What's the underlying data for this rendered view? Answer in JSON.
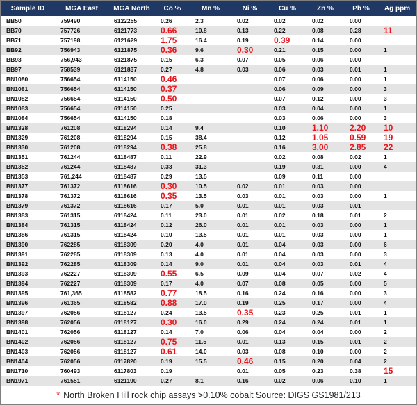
{
  "table": {
    "header": [
      "Sample ID",
      "MGA East",
      "MGA North",
      "Co %",
      "Mn %",
      "Ni %",
      "Cu %",
      "Zn %",
      "Pb %",
      "Ag ppm"
    ],
    "highlight_color": "#e8141b",
    "rows": [
      [
        "BB50",
        "759490",
        "6122255",
        "0.26",
        "2.3",
        "0.02",
        "0.02",
        "0.02",
        "0.00",
        null
      ],
      [
        "BB70",
        "757726",
        "6121773",
        {
          "text": "0.66",
          "highlight": true
        },
        "10.8",
        "0.13",
        "0.22",
        "0.08",
        "0.28",
        {
          "text": "11",
          "highlight": true
        }
      ],
      [
        "BB71",
        "757198",
        "6121629",
        {
          "text": "1.75",
          "highlight": true
        },
        "16.4",
        "0.19",
        {
          "text": "0.39",
          "highlight": true
        },
        "0.14",
        "0.00",
        null
      ],
      [
        "BB92",
        "756943",
        "6121875",
        {
          "text": "0.36",
          "highlight": true
        },
        "9.6",
        {
          "text": "0.30",
          "highlight": true
        },
        "0.21",
        "0.15",
        "0.00",
        "1"
      ],
      [
        "BB93",
        "756,943",
        "6121875",
        "0.15",
        "6.3",
        "0.07",
        "0.05",
        "0.06",
        "0.00",
        null
      ],
      [
        "BB97",
        "758539",
        "6121837",
        "0.27",
        "4.8",
        "0.03",
        "0.06",
        "0.03",
        "0.01",
        "1"
      ],
      [
        "BN1080",
        "756654",
        "6114150",
        {
          "text": "0.46",
          "highlight": true
        },
        null,
        null,
        "0.07",
        "0.06",
        "0.00",
        "1"
      ],
      [
        "BN1081",
        "756654",
        "6114150",
        {
          "text": "0.37",
          "highlight": true
        },
        null,
        null,
        "0.06",
        "0.09",
        "0.00",
        "3"
      ],
      [
        "BN1082",
        "756654",
        "6114150",
        {
          "text": "0.50",
          "highlight": true
        },
        null,
        null,
        "0.07",
        "0.12",
        "0.00",
        "3"
      ],
      [
        "BN1083",
        "756654",
        "6114150",
        "0.25",
        null,
        null,
        "0.03",
        "0.04",
        "0.00",
        "1"
      ],
      [
        "BN1084",
        "756654",
        "6114150",
        "0.18",
        null,
        null,
        "0.03",
        "0.06",
        "0.00",
        "3"
      ],
      [
        "BN1328",
        "761208",
        "6118294",
        "0.14",
        "9.4",
        null,
        "0.10",
        {
          "text": "1.10",
          "highlight": true
        },
        {
          "text": "2.20",
          "highlight": true
        },
        {
          "text": "10",
          "highlight": true
        }
      ],
      [
        "BN1329",
        "761208",
        "6118294",
        "0.15",
        "38.4",
        null,
        "0.12",
        {
          "text": "1.05",
          "highlight": true
        },
        {
          "text": "0.59",
          "highlight": true
        },
        {
          "text": "19",
          "highlight": true
        }
      ],
      [
        "BN1330",
        "761208",
        "6118294",
        {
          "text": "0.38",
          "highlight": true
        },
        "25.8",
        null,
        "0.16",
        {
          "text": "3.00",
          "highlight": true
        },
        {
          "text": "2.85",
          "highlight": true
        },
        {
          "text": "22",
          "highlight": true
        }
      ],
      [
        "BN1351",
        "761244",
        "6118487",
        "0.11",
        "22.9",
        null,
        "0.02",
        "0.08",
        "0.02",
        "1"
      ],
      [
        "BN1352",
        "761244",
        "6118487",
        "0.33",
        "31.3",
        null,
        "0.19",
        "0.31",
        "0.00",
        "4"
      ],
      [
        "BN1353",
        "761,244",
        "6118487",
        "0.29",
        "13.5",
        null,
        "0.09",
        "0.11",
        "0.00",
        null
      ],
      [
        "BN1377",
        "761372",
        "6118616",
        {
          "text": "0.30",
          "highlight": true
        },
        "10.5",
        "0.02",
        "0.01",
        "0.03",
        "0.00",
        null
      ],
      [
        "BN1378",
        "761372",
        "6118616",
        {
          "text": "0.35",
          "highlight": true
        },
        "13.5",
        "0.03",
        "0.01",
        "0.03",
        "0.00",
        "1"
      ],
      [
        "BN1379",
        "761372",
        "6118616",
        "0.17",
        "5.0",
        "0.01",
        "0.01",
        "0.03",
        "0.01",
        null
      ],
      [
        "BN1383",
        "761315",
        "6118424",
        "0.11",
        "23.0",
        "0.01",
        "0.02",
        "0.18",
        "0.01",
        "2"
      ],
      [
        "BN1384",
        "761315",
        "6118424",
        "0.12",
        "26.0",
        "0.01",
        "0.01",
        "0.03",
        "0.00",
        "1"
      ],
      [
        "BN1386",
        "761315",
        "6118424",
        "0.10",
        "13.5",
        "0.01",
        "0.01",
        "0.03",
        "0.00",
        "1"
      ],
      [
        "BN1390",
        "762285",
        "6118309",
        "0.20",
        "4.0",
        "0.01",
        "0.04",
        "0.03",
        "0.00",
        "6"
      ],
      [
        "BN1391",
        "762285",
        "6118309",
        "0.13",
        "4.0",
        "0.01",
        "0.04",
        "0.03",
        "0.00",
        "3"
      ],
      [
        "BN1392",
        "762285",
        "6118309",
        "0.14",
        "9.0",
        "0.01",
        "0.04",
        "0.03",
        "0.01",
        "4"
      ],
      [
        "BN1393",
        "762227",
        "6118309",
        {
          "text": "0.55",
          "highlight": true
        },
        "6.5",
        "0.09",
        "0.04",
        "0.07",
        "0.02",
        "4"
      ],
      [
        "BN1394",
        "762227",
        "6118309",
        "0.17",
        "4.0",
        "0.07",
        "0.08",
        "0.05",
        "0.00",
        "5"
      ],
      [
        "BN1395",
        "761,365",
        "6118582",
        {
          "text": "0.77",
          "highlight": true
        },
        "18.5",
        "0.16",
        "0.24",
        "0.16",
        "0.00",
        "3"
      ],
      [
        "BN1396",
        "761365",
        "6118582",
        {
          "text": "0.88",
          "highlight": true
        },
        "17.0",
        "0.19",
        "0.25",
        "0.17",
        "0.00",
        "4"
      ],
      [
        "BN1397",
        "762056",
        "6118127",
        "0.24",
        "13.5",
        {
          "text": "0.35",
          "highlight": true
        },
        "0.23",
        "0.25",
        "0.01",
        "1"
      ],
      [
        "BN1398",
        "762056",
        "6118127",
        {
          "text": "0.30",
          "highlight": true
        },
        "16.0",
        "0.29",
        "0.24",
        "0.24",
        "0.01",
        "1"
      ],
      [
        "BN1401",
        "762056",
        "6118127",
        "0.14",
        "7.0",
        "0.06",
        "0.04",
        "0.04",
        "0.00",
        "2"
      ],
      [
        "BN1402",
        "762056",
        "6118127",
        {
          "text": "0.75",
          "highlight": true
        },
        "11.5",
        "0.01",
        "0.13",
        "0.15",
        "0.01",
        "2"
      ],
      [
        "BN1403",
        "762056",
        "6118127",
        {
          "text": "0.61",
          "highlight": true
        },
        "14.0",
        "0.03",
        "0.08",
        "0.10",
        "0.00",
        "2"
      ],
      [
        "BN1404",
        "762056",
        "6117820",
        "0.19",
        "15.5",
        {
          "text": "0.46",
          "highlight": true
        },
        "0.15",
        "0.20",
        "0.04",
        "2"
      ],
      [
        "BN1710",
        "760493",
        "6117803",
        "0.19",
        null,
        "0.01",
        "0.05",
        "0.23",
        "0.38",
        {
          "text": "15",
          "highlight": true
        }
      ],
      [
        "BN1971",
        "761551",
        "6121190",
        "0.27",
        "8.1",
        "0.16",
        "0.02",
        "0.06",
        "0.10",
        "1"
      ]
    ]
  },
  "footer": {
    "asterisk": "*",
    "text": "North Broken Hill rock chip assays >0.10% cobalt Source: DIGS GS1981/213"
  }
}
